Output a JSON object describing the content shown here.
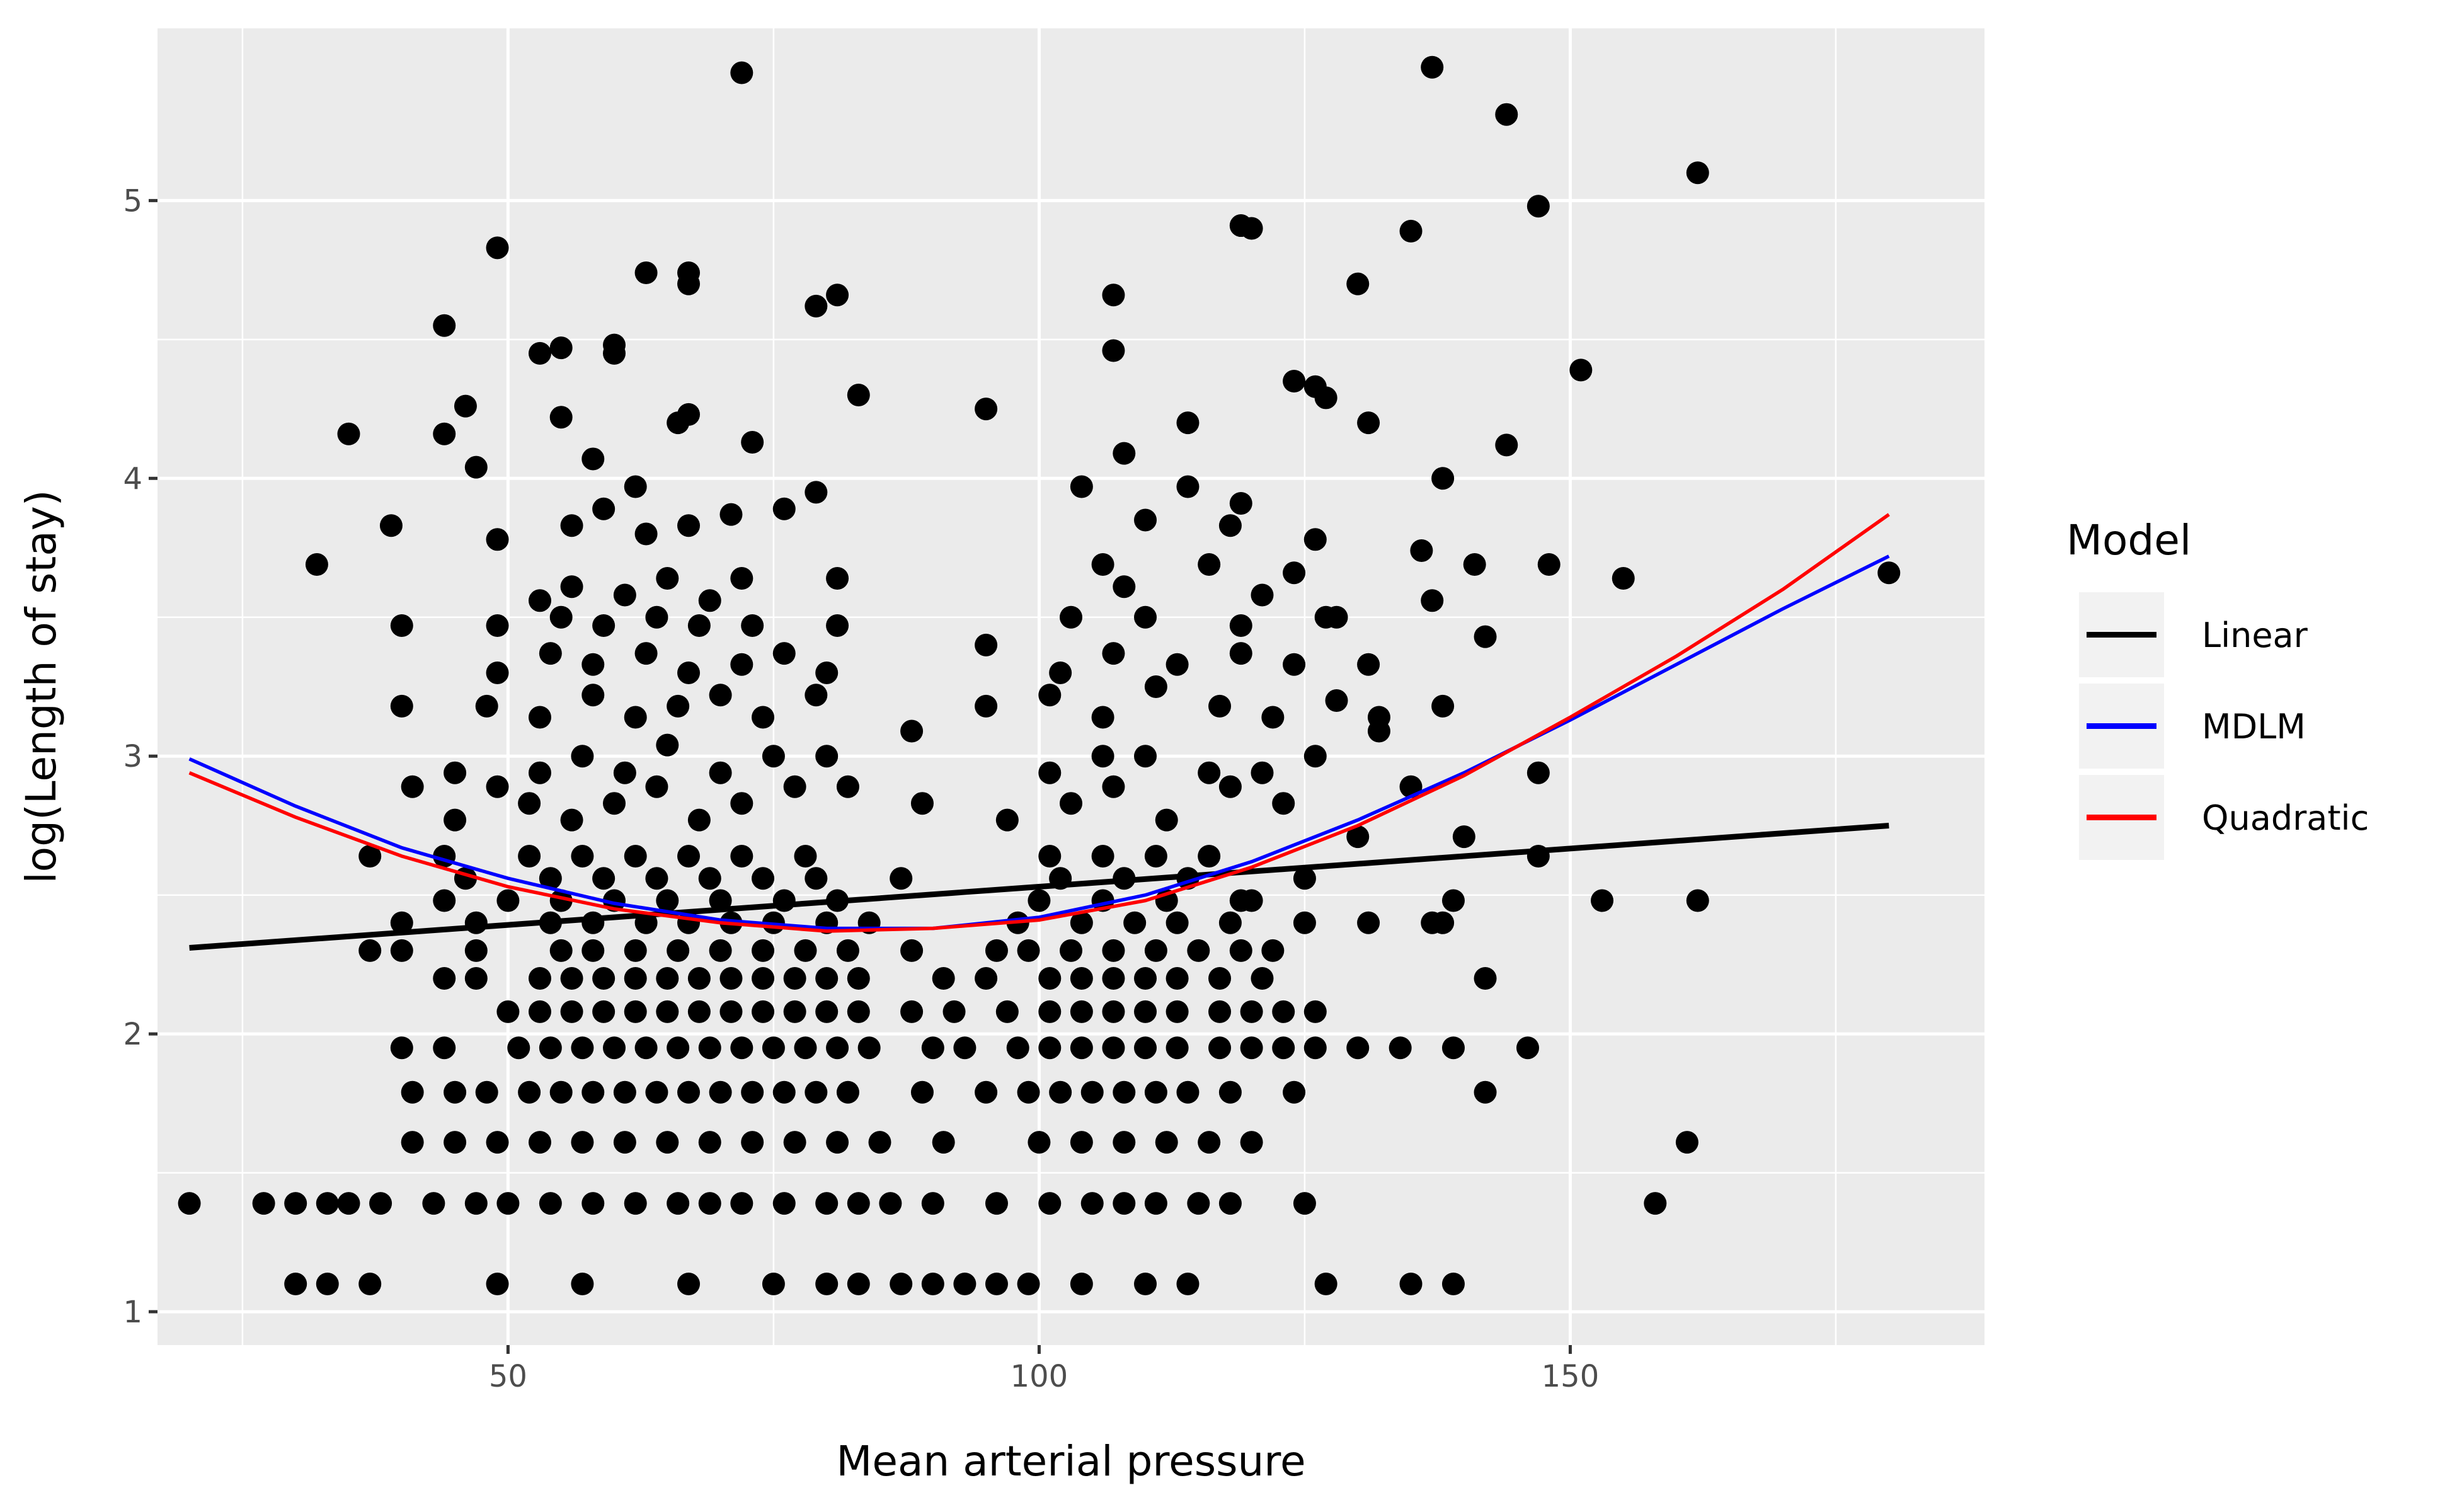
{
  "chart_data": {
    "type": "scatter",
    "xlabel": "Mean arterial pressure",
    "ylabel": "log(Length of stay)",
    "xlim": [
      17,
      189
    ],
    "ylim": [
      0.88,
      5.62
    ],
    "x_ticks": [
      50,
      100,
      150
    ],
    "x_tick_labels": [
      "50",
      "100",
      "150"
    ],
    "y_ticks": [
      1,
      2,
      3,
      4,
      5
    ],
    "y_tick_labels": [
      "1",
      "2",
      "3",
      "4",
      "5"
    ],
    "grid": true,
    "legend": {
      "title": "Model",
      "placement": "right"
    },
    "points": [
      [
        20,
        1.39
      ],
      [
        27,
        1.39
      ],
      [
        30,
        1.39
      ],
      [
        33,
        1.39
      ],
      [
        35,
        1.39
      ],
      [
        38,
        1.39
      ],
      [
        43,
        1.39
      ],
      [
        47,
        1.39
      ],
      [
        50,
        1.39
      ],
      [
        54,
        1.39
      ],
      [
        58,
        1.39
      ],
      [
        62,
        1.39
      ],
      [
        66,
        1.39
      ],
      [
        69,
        1.39
      ],
      [
        72,
        1.39
      ],
      [
        76,
        1.39
      ],
      [
        80,
        1.39
      ],
      [
        83,
        1.39
      ],
      [
        86,
        1.39
      ],
      [
        90,
        1.39
      ],
      [
        96,
        1.39
      ],
      [
        101,
        1.39
      ],
      [
        105,
        1.39
      ],
      [
        108,
        1.39
      ],
      [
        111,
        1.39
      ],
      [
        115,
        1.39
      ],
      [
        118,
        1.39
      ],
      [
        125,
        1.39
      ],
      [
        158,
        1.39
      ],
      [
        30,
        1.1
      ],
      [
        33,
        1.1
      ],
      [
        37,
        1.1
      ],
      [
        49,
        1.1
      ],
      [
        57,
        1.1
      ],
      [
        67,
        1.1
      ],
      [
        75,
        1.1
      ],
      [
        80,
        1.1
      ],
      [
        83,
        1.1
      ],
      [
        87,
        1.1
      ],
      [
        90,
        1.1
      ],
      [
        93,
        1.1
      ],
      [
        96,
        1.1
      ],
      [
        99,
        1.1
      ],
      [
        104,
        1.1
      ],
      [
        110,
        1.1
      ],
      [
        114,
        1.1
      ],
      [
        127,
        1.1
      ],
      [
        135,
        1.1
      ],
      [
        139,
        1.1
      ],
      [
        41,
        1.61
      ],
      [
        45,
        1.61
      ],
      [
        49,
        1.61
      ],
      [
        53,
        1.61
      ],
      [
        57,
        1.61
      ],
      [
        61,
        1.61
      ],
      [
        65,
        1.61
      ],
      [
        69,
        1.61
      ],
      [
        73,
        1.61
      ],
      [
        77,
        1.61
      ],
      [
        81,
        1.61
      ],
      [
        85,
        1.61
      ],
      [
        91,
        1.61
      ],
      [
        100,
        1.61
      ],
      [
        104,
        1.61
      ],
      [
        108,
        1.61
      ],
      [
        112,
        1.61
      ],
      [
        116,
        1.61
      ],
      [
        120,
        1.61
      ],
      [
        161,
        1.61
      ],
      [
        41,
        1.79
      ],
      [
        45,
        1.79
      ],
      [
        48,
        1.79
      ],
      [
        52,
        1.79
      ],
      [
        55,
        1.79
      ],
      [
        58,
        1.79
      ],
      [
        61,
        1.79
      ],
      [
        64,
        1.79
      ],
      [
        67,
        1.79
      ],
      [
        70,
        1.79
      ],
      [
        73,
        1.79
      ],
      [
        76,
        1.79
      ],
      [
        79,
        1.79
      ],
      [
        82,
        1.79
      ],
      [
        89,
        1.79
      ],
      [
        95,
        1.79
      ],
      [
        99,
        1.79
      ],
      [
        102,
        1.79
      ],
      [
        105,
        1.79
      ],
      [
        108,
        1.79
      ],
      [
        111,
        1.79
      ],
      [
        114,
        1.79
      ],
      [
        118,
        1.79
      ],
      [
        124,
        1.79
      ],
      [
        142,
        1.79
      ],
      [
        40,
        1.95
      ],
      [
        44,
        1.95
      ],
      [
        51,
        1.95
      ],
      [
        54,
        1.95
      ],
      [
        57,
        1.95
      ],
      [
        60,
        1.95
      ],
      [
        63,
        1.95
      ],
      [
        66,
        1.95
      ],
      [
        69,
        1.95
      ],
      [
        72,
        1.95
      ],
      [
        75,
        1.95
      ],
      [
        78,
        1.95
      ],
      [
        81,
        1.95
      ],
      [
        84,
        1.95
      ],
      [
        90,
        1.95
      ],
      [
        93,
        1.95
      ],
      [
        98,
        1.95
      ],
      [
        101,
        1.95
      ],
      [
        104,
        1.95
      ],
      [
        107,
        1.95
      ],
      [
        110,
        1.95
      ],
      [
        113,
        1.95
      ],
      [
        117,
        1.95
      ],
      [
        120,
        1.95
      ],
      [
        123,
        1.95
      ],
      [
        126,
        1.95
      ],
      [
        130,
        1.95
      ],
      [
        134,
        1.95
      ],
      [
        139,
        1.95
      ],
      [
        146,
        1.95
      ],
      [
        50,
        2.08
      ],
      [
        53,
        2.08
      ],
      [
        56,
        2.08
      ],
      [
        59,
        2.08
      ],
      [
        62,
        2.08
      ],
      [
        65,
        2.08
      ],
      [
        68,
        2.08
      ],
      [
        71,
        2.08
      ],
      [
        74,
        2.08
      ],
      [
        77,
        2.08
      ],
      [
        80,
        2.08
      ],
      [
        83,
        2.08
      ],
      [
        88,
        2.08
      ],
      [
        92,
        2.08
      ],
      [
        97,
        2.08
      ],
      [
        101,
        2.08
      ],
      [
        104,
        2.08
      ],
      [
        107,
        2.08
      ],
      [
        110,
        2.08
      ],
      [
        113,
        2.08
      ],
      [
        117,
        2.08
      ],
      [
        120,
        2.08
      ],
      [
        123,
        2.08
      ],
      [
        126,
        2.08
      ],
      [
        44,
        2.2
      ],
      [
        47,
        2.2
      ],
      [
        53,
        2.2
      ],
      [
        56,
        2.2
      ],
      [
        59,
        2.2
      ],
      [
        62,
        2.2
      ],
      [
        65,
        2.2
      ],
      [
        68,
        2.2
      ],
      [
        71,
        2.2
      ],
      [
        74,
        2.2
      ],
      [
        77,
        2.2
      ],
      [
        80,
        2.2
      ],
      [
        83,
        2.2
      ],
      [
        91,
        2.2
      ],
      [
        95,
        2.2
      ],
      [
        101,
        2.2
      ],
      [
        104,
        2.2
      ],
      [
        107,
        2.2
      ],
      [
        110,
        2.2
      ],
      [
        113,
        2.2
      ],
      [
        117,
        2.2
      ],
      [
        121,
        2.2
      ],
      [
        142,
        2.2
      ],
      [
        37,
        2.3
      ],
      [
        40,
        2.3
      ],
      [
        47,
        2.3
      ],
      [
        55,
        2.3
      ],
      [
        58,
        2.3
      ],
      [
        62,
        2.3
      ],
      [
        66,
        2.3
      ],
      [
        70,
        2.3
      ],
      [
        74,
        2.3
      ],
      [
        78,
        2.3
      ],
      [
        82,
        2.3
      ],
      [
        88,
        2.3
      ],
      [
        96,
        2.3
      ],
      [
        99,
        2.3
      ],
      [
        103,
        2.3
      ],
      [
        107,
        2.3
      ],
      [
        111,
        2.3
      ],
      [
        115,
        2.3
      ],
      [
        119,
        2.3
      ],
      [
        122,
        2.3
      ],
      [
        40,
        2.4
      ],
      [
        47,
        2.4
      ],
      [
        54,
        2.4
      ],
      [
        58,
        2.4
      ],
      [
        63,
        2.4
      ],
      [
        67,
        2.4
      ],
      [
        71,
        2.4
      ],
      [
        75,
        2.4
      ],
      [
        80,
        2.4
      ],
      [
        84,
        2.4
      ],
      [
        98,
        2.4
      ],
      [
        104,
        2.4
      ],
      [
        109,
        2.4
      ],
      [
        113,
        2.4
      ],
      [
        118,
        2.4
      ],
      [
        125,
        2.4
      ],
      [
        131,
        2.4
      ],
      [
        137,
        2.4
      ],
      [
        138,
        2.4
      ],
      [
        44,
        2.48
      ],
      [
        50,
        2.48
      ],
      [
        55,
        2.48
      ],
      [
        60,
        2.48
      ],
      [
        65,
        2.48
      ],
      [
        70,
        2.48
      ],
      [
        76,
        2.48
      ],
      [
        81,
        2.48
      ],
      [
        100,
        2.48
      ],
      [
        106,
        2.48
      ],
      [
        112,
        2.48
      ],
      [
        119,
        2.48
      ],
      [
        120,
        2.48
      ],
      [
        139,
        2.48
      ],
      [
        153,
        2.48
      ],
      [
        162,
        2.48
      ],
      [
        37,
        2.64
      ],
      [
        44,
        2.64
      ],
      [
        52,
        2.64
      ],
      [
        57,
        2.64
      ],
      [
        62,
        2.64
      ],
      [
        67,
        2.64
      ],
      [
        72,
        2.64
      ],
      [
        78,
        2.64
      ],
      [
        101,
        2.64
      ],
      [
        106,
        2.64
      ],
      [
        111,
        2.64
      ],
      [
        116,
        2.64
      ],
      [
        147,
        2.64
      ],
      [
        46,
        2.56
      ],
      [
        54,
        2.56
      ],
      [
        59,
        2.56
      ],
      [
        64,
        2.56
      ],
      [
        69,
        2.56
      ],
      [
        74,
        2.56
      ],
      [
        79,
        2.56
      ],
      [
        87,
        2.56
      ],
      [
        102,
        2.56
      ],
      [
        108,
        2.56
      ],
      [
        114,
        2.56
      ],
      [
        125,
        2.56
      ],
      [
        41,
        2.89
      ],
      [
        45,
        2.77
      ],
      [
        49,
        2.89
      ],
      [
        52,
        2.83
      ],
      [
        56,
        2.77
      ],
      [
        60,
        2.83
      ],
      [
        64,
        2.89
      ],
      [
        68,
        2.77
      ],
      [
        72,
        2.83
      ],
      [
        77,
        2.89
      ],
      [
        82,
        2.89
      ],
      [
        89,
        2.83
      ],
      [
        97,
        2.77
      ],
      [
        103,
        2.83
      ],
      [
        107,
        2.89
      ],
      [
        112,
        2.77
      ],
      [
        118,
        2.89
      ],
      [
        123,
        2.83
      ],
      [
        130,
        2.71
      ],
      [
        135,
        2.89
      ],
      [
        140,
        2.71
      ],
      [
        45,
        2.94
      ],
      [
        53,
        2.94
      ],
      [
        57,
        3.0
      ],
      [
        61,
        2.94
      ],
      [
        65,
        3.04
      ],
      [
        70,
        2.94
      ],
      [
        75,
        3.0
      ],
      [
        80,
        3.0
      ],
      [
        101,
        2.94
      ],
      [
        106,
        3.0
      ],
      [
        110,
        3.0
      ],
      [
        116,
        2.94
      ],
      [
        121,
        2.94
      ],
      [
        126,
        3.0
      ],
      [
        132,
        3.09
      ],
      [
        147,
        2.94
      ],
      [
        48,
        3.18
      ],
      [
        53,
        3.14
      ],
      [
        58,
        3.22
      ],
      [
        62,
        3.14
      ],
      [
        66,
        3.18
      ],
      [
        70,
        3.22
      ],
      [
        74,
        3.14
      ],
      [
        79,
        3.22
      ],
      [
        88,
        3.09
      ],
      [
        95,
        3.18
      ],
      [
        101,
        3.22
      ],
      [
        106,
        3.14
      ],
      [
        111,
        3.25
      ],
      [
        117,
        3.18
      ],
      [
        122,
        3.14
      ],
      [
        128,
        3.2
      ],
      [
        132,
        3.14
      ],
      [
        138,
        3.18
      ],
      [
        40,
        3.18
      ],
      [
        49,
        3.3
      ],
      [
        54,
        3.37
      ],
      [
        58,
        3.33
      ],
      [
        63,
        3.37
      ],
      [
        67,
        3.3
      ],
      [
        72,
        3.33
      ],
      [
        76,
        3.37
      ],
      [
        80,
        3.3
      ],
      [
        102,
        3.3
      ],
      [
        107,
        3.37
      ],
      [
        113,
        3.33
      ],
      [
        119,
        3.37
      ],
      [
        124,
        3.33
      ],
      [
        128,
        3.5
      ],
      [
        131,
        3.33
      ],
      [
        142,
        3.43
      ],
      [
        40,
        3.47
      ],
      [
        49,
        3.47
      ],
      [
        55,
        3.5
      ],
      [
        59,
        3.47
      ],
      [
        64,
        3.5
      ],
      [
        68,
        3.47
      ],
      [
        73,
        3.47
      ],
      [
        81,
        3.47
      ],
      [
        95,
        3.4
      ],
      [
        103,
        3.5
      ],
      [
        110,
        3.5
      ],
      [
        119,
        3.47
      ],
      [
        127,
        3.5
      ],
      [
        137,
        3.56
      ],
      [
        32,
        3.69
      ],
      [
        53,
        3.56
      ],
      [
        56,
        3.61
      ],
      [
        61,
        3.58
      ],
      [
        65,
        3.64
      ],
      [
        69,
        3.56
      ],
      [
        72,
        3.64
      ],
      [
        81,
        3.64
      ],
      [
        106,
        3.69
      ],
      [
        108,
        3.61
      ],
      [
        116,
        3.69
      ],
      [
        121,
        3.58
      ],
      [
        124,
        3.66
      ],
      [
        141,
        3.69
      ],
      [
        148,
        3.69
      ],
      [
        155,
        3.64
      ],
      [
        180,
        3.66
      ],
      [
        136,
        3.74
      ],
      [
        39,
        3.83
      ],
      [
        49,
        3.78
      ],
      [
        56,
        3.83
      ],
      [
        59,
        3.89
      ],
      [
        63,
        3.8
      ],
      [
        67,
        3.83
      ],
      [
        71,
        3.87
      ],
      [
        76,
        3.89
      ],
      [
        79,
        3.95
      ],
      [
        110,
        3.85
      ],
      [
        114,
        3.97
      ],
      [
        118,
        3.83
      ],
      [
        126,
        3.78
      ],
      [
        44,
        4.16
      ],
      [
        46,
        4.26
      ],
      [
        47,
        4.04
      ],
      [
        35,
        4.16
      ],
      [
        53,
        4.45
      ],
      [
        55,
        4.22
      ],
      [
        58,
        4.07
      ],
      [
        60,
        4.45
      ],
      [
        62,
        3.97
      ],
      [
        66,
        4.2
      ],
      [
        67,
        4.23
      ],
      [
        73,
        4.13
      ],
      [
        83,
        4.3
      ],
      [
        95,
        4.25
      ],
      [
        104,
        3.97
      ],
      [
        108,
        4.09
      ],
      [
        114,
        4.2
      ],
      [
        119,
        3.91
      ],
      [
        124,
        4.35
      ],
      [
        127,
        4.29
      ],
      [
        131,
        4.2
      ],
      [
        138,
        4.0
      ],
      [
        144,
        4.12
      ],
      [
        151,
        4.39
      ],
      [
        44,
        4.55
      ],
      [
        49,
        4.83
      ],
      [
        55,
        4.47
      ],
      [
        60,
        4.48
      ],
      [
        63,
        4.74
      ],
      [
        67,
        4.74
      ],
      [
        67,
        4.7
      ],
      [
        72,
        5.46
      ],
      [
        79,
        4.62
      ],
      [
        81,
        4.66
      ],
      [
        107,
        4.66
      ],
      [
        107,
        4.46
      ],
      [
        119,
        4.91
      ],
      [
        120,
        4.9
      ],
      [
        126,
        4.33
      ],
      [
        130,
        4.7
      ],
      [
        135,
        4.89
      ],
      [
        137,
        5.48
      ],
      [
        144,
        5.31
      ],
      [
        147,
        4.98
      ],
      [
        162,
        5.1
      ]
    ],
    "series": [
      {
        "name": "Linear",
        "color": "#000000",
        "x": [
          20,
          180
        ],
        "y": [
          2.31,
          2.75
        ]
      },
      {
        "name": "MDLM",
        "color": "#0000ff",
        "x": [
          20,
          30,
          40,
          50,
          60,
          70,
          80,
          90,
          100,
          110,
          120,
          130,
          140,
          150,
          160,
          170,
          180
        ],
        "y": [
          2.99,
          2.82,
          2.67,
          2.56,
          2.47,
          2.41,
          2.38,
          2.38,
          2.42,
          2.5,
          2.62,
          2.77,
          2.94,
          3.13,
          3.33,
          3.53,
          3.72
        ]
      },
      {
        "name": "Quadratic",
        "color": "#ff0000",
        "x": [
          20,
          30,
          40,
          50,
          60,
          70,
          80,
          90,
          100,
          110,
          120,
          130,
          140,
          150,
          160,
          170,
          180
        ],
        "y": [
          2.94,
          2.78,
          2.64,
          2.53,
          2.45,
          2.4,
          2.37,
          2.38,
          2.41,
          2.48,
          2.6,
          2.75,
          2.93,
          3.14,
          3.36,
          3.6,
          3.87
        ]
      }
    ]
  }
}
